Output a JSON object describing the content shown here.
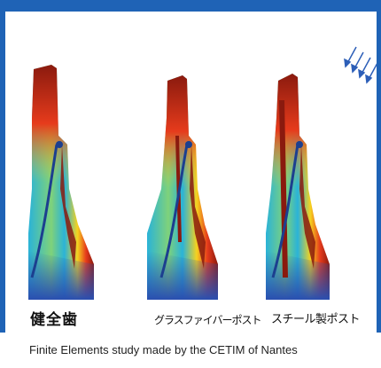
{
  "colors": {
    "frame": "#1f63b6",
    "stress_high": "#8a1a0e",
    "stress_mid_high": "#e63b1c",
    "stress_mid": "#f6d21e",
    "stress_mid_low": "#7fd27a",
    "stress_low": "#2ab3d8",
    "stress_lowest": "#2a4fb0"
  },
  "force_indicator": {
    "icon": "arrows-down-left-icon"
  },
  "models": [
    {
      "label": "健全歯"
    },
    {
      "label": "グラスファイバーポスト"
    },
    {
      "label": "スチール製ポスト"
    }
  ],
  "caption": "Finite Elements study made by the CETIM of Nantes"
}
